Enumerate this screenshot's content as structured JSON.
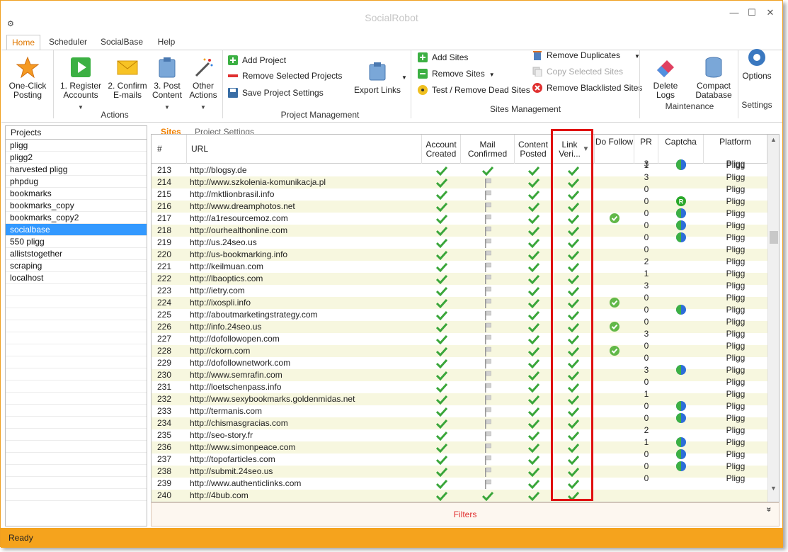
{
  "window": {
    "title": "SocialRobot",
    "minimize": "—",
    "maximize": "☐",
    "close": "✕"
  },
  "ribbon_tabs": [
    "Home",
    "Scheduler",
    "SocialBase",
    "Help"
  ],
  "ribbon": {
    "actions": {
      "one_click": "One-Click Posting",
      "register": "1. Register Accounts",
      "confirm": "2. Confirm E-mails",
      "post": "3. Post Content",
      "other": "Other Actions",
      "group": "Actions"
    },
    "project_mgmt": {
      "add": "Add Project",
      "remove": "Remove Selected Projects",
      "save": "Save Project Settings",
      "export": "Export Links",
      "group": "Project Management"
    },
    "sites_mgmt": {
      "add": "Add Sites",
      "remove": "Remove Sites",
      "test": "Test / Remove Dead Sites",
      "dupes": "Remove Duplicates",
      "copy": "Copy Selected Sites",
      "blacklist": "Remove Blacklisted Sites",
      "group": "Sites Management"
    },
    "maintenance": {
      "delete_logs": "Delete Logs",
      "compact": "Compact Database",
      "group": "Maintenance"
    },
    "settings": {
      "options": "Options",
      "group": "Settings"
    }
  },
  "projects": {
    "header": "Projects",
    "items": [
      "pligg",
      "pligg2",
      "harvested pligg",
      "phpdug",
      "bookmarks",
      "bookmarks_copy",
      "bookmarks_copy2",
      "socialbase",
      "550 pligg",
      "alliststogether",
      "scraping",
      "localhost"
    ],
    "selected_index": 7
  },
  "subtabs": [
    "Sites",
    "Project Settings"
  ],
  "grid": {
    "headers": {
      "num": "#",
      "url": "URL",
      "account": "Account Created",
      "mail": "Mail Confirmed",
      "content": "Content Posted",
      "link": "Link Veri...",
      "dofollow": "Do Follow",
      "pr": "PR",
      "captcha": "Captcha",
      "platform": "Platform"
    },
    "top_partial": {
      "pr": "3",
      "captcha": "blue",
      "platform": "Pligg"
    },
    "rows": [
      {
        "n": "213",
        "url": "http://blogsy.de",
        "mail": "check",
        "df": "",
        "pr": "1",
        "cap": "blue",
        "plat": "Pligg"
      },
      {
        "n": "214",
        "url": "http://www.szkolenia-komunikacja.pl",
        "mail": "flag",
        "df": "",
        "pr": "3",
        "cap": "",
        "plat": "Pligg"
      },
      {
        "n": "215",
        "url": "http://mktlionbrasil.info",
        "mail": "flag",
        "df": "",
        "pr": "0",
        "cap": "",
        "plat": "Pligg"
      },
      {
        "n": "216",
        "url": "http://www.dreamphotos.net",
        "mail": "flag",
        "df": "",
        "pr": "0",
        "cap": "green",
        "plat": "Pligg"
      },
      {
        "n": "217",
        "url": "http://a1resourcemoz.com",
        "mail": "flag",
        "df": "yes",
        "pr": "0",
        "cap": "blue",
        "plat": "Pligg"
      },
      {
        "n": "218",
        "url": "http://ourhealthonline.com",
        "mail": "flag",
        "df": "",
        "pr": "0",
        "cap": "blue",
        "plat": "Pligg"
      },
      {
        "n": "219",
        "url": "http://us.24seo.us",
        "mail": "flag",
        "df": "",
        "pr": "0",
        "cap": "blue",
        "plat": "Pligg"
      },
      {
        "n": "220",
        "url": "http://us-bookmarking.info",
        "mail": "flag",
        "df": "",
        "pr": "0",
        "cap": "",
        "plat": "Pligg"
      },
      {
        "n": "221",
        "url": "http://keilmuan.com",
        "mail": "flag",
        "df": "",
        "pr": "2",
        "cap": "",
        "plat": "Pligg"
      },
      {
        "n": "222",
        "url": "http://lbaoptics.com",
        "mail": "flag",
        "df": "",
        "pr": "1",
        "cap": "",
        "plat": "Pligg"
      },
      {
        "n": "223",
        "url": "http://ietry.com",
        "mail": "flag",
        "df": "",
        "pr": "3",
        "cap": "",
        "plat": "Pligg"
      },
      {
        "n": "224",
        "url": "http://ixospli.info",
        "mail": "flag",
        "df": "yes",
        "pr": "0",
        "cap": "",
        "plat": "Pligg"
      },
      {
        "n": "225",
        "url": "http://aboutmarketingstrategy.com",
        "mail": "flag",
        "df": "",
        "pr": "0",
        "cap": "blue",
        "plat": "Pligg"
      },
      {
        "n": "226",
        "url": "http://info.24seo.us",
        "mail": "flag",
        "df": "yes",
        "pr": "0",
        "cap": "",
        "plat": "Pligg"
      },
      {
        "n": "227",
        "url": "http://dofollowopen.com",
        "mail": "flag",
        "df": "",
        "pr": "3",
        "cap": "",
        "plat": "Pligg"
      },
      {
        "n": "228",
        "url": "http://ckorn.com",
        "mail": "flag",
        "df": "yes",
        "pr": "0",
        "cap": "",
        "plat": "Pligg"
      },
      {
        "n": "229",
        "url": "http://dofollownetwork.com",
        "mail": "flag",
        "df": "",
        "pr": "0",
        "cap": "",
        "plat": "Pligg"
      },
      {
        "n": "230",
        "url": "http://www.semrafin.com",
        "mail": "flag",
        "df": "",
        "pr": "3",
        "cap": "blue",
        "plat": "Pligg"
      },
      {
        "n": "231",
        "url": "http://loetschenpass.info",
        "mail": "flag",
        "df": "",
        "pr": "0",
        "cap": "",
        "plat": "Pligg"
      },
      {
        "n": "232",
        "url": "http://www.sexybookmarks.goldenmidas.net",
        "mail": "flag",
        "df": "",
        "pr": "1",
        "cap": "",
        "plat": "Pligg"
      },
      {
        "n": "233",
        "url": "http://termanis.com",
        "mail": "flag",
        "df": "",
        "pr": "0",
        "cap": "blue",
        "plat": "Pligg"
      },
      {
        "n": "234",
        "url": "http://chismasgracias.com",
        "mail": "flag",
        "df": "",
        "pr": "0",
        "cap": "blue",
        "plat": "Pligg"
      },
      {
        "n": "235",
        "url": "http://seo-story.fr",
        "mail": "flag",
        "df": "",
        "pr": "2",
        "cap": "",
        "plat": "Pligg"
      },
      {
        "n": "236",
        "url": "http://www.simonpeace.com",
        "mail": "flag",
        "df": "",
        "pr": "1",
        "cap": "blue",
        "plat": "Pligg"
      },
      {
        "n": "237",
        "url": "http://topofarticles.com",
        "mail": "flag",
        "df": "",
        "pr": "0",
        "cap": "blue",
        "plat": "Pligg"
      },
      {
        "n": "238",
        "url": "http://submit.24seo.us",
        "mail": "flag",
        "df": "",
        "pr": "0",
        "cap": "blue",
        "plat": "Pligg"
      },
      {
        "n": "239",
        "url": "http://www.authenticlinks.com",
        "mail": "flag",
        "df": "",
        "pr": "0",
        "cap": "",
        "plat": "Pligg"
      },
      {
        "n": "240",
        "url": "http://4bub.com",
        "mail": "check",
        "df": "",
        "pr": "",
        "cap": "",
        "plat": ""
      }
    ]
  },
  "filters": {
    "label": "Filters",
    "toggle": "»"
  },
  "status": {
    "text": "Ready"
  },
  "colors": {
    "accent": "#f5a31d",
    "check": "#3aa63a",
    "selected": "#3399ff",
    "alt_row": "#f7f7df",
    "highlight": "#e01010"
  }
}
